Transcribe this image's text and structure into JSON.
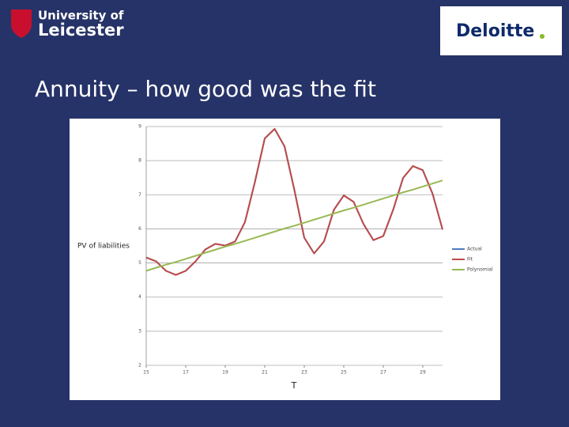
{
  "header": {
    "university_line1": "University of",
    "university_line2": "Leicester",
    "company": "Deloitte",
    "title": "Annuity – how good was the fit"
  },
  "chart_data": {
    "type": "line",
    "y_label": "PV of liabilities",
    "x_label": "T",
    "x": [
      15,
      15.5,
      16,
      16.5,
      17,
      17.5,
      18,
      18.5,
      19,
      19.5,
      20,
      20.5,
      21,
      21.5,
      22,
      22.5,
      23,
      23.5,
      24,
      24.5,
      25,
      25.5,
      26,
      26.5,
      27,
      27.5,
      28,
      28.5,
      29,
      29.5,
      30
    ],
    "series": [
      {
        "name": "Actual",
        "color": "#4a7ebb",
        "values": [
          5.16,
          5.05,
          4.77,
          4.65,
          4.77,
          5.05,
          5.4,
          5.56,
          5.51,
          5.63,
          6.2,
          7.37,
          8.65,
          8.93,
          8.42,
          7.14,
          5.74,
          5.28,
          5.63,
          6.56,
          6.98,
          6.79,
          6.14,
          5.67,
          5.79,
          6.56,
          7.49,
          7.84,
          7.72,
          7.02,
          5.98
        ]
      },
      {
        "name": "Fit",
        "color": "#be4b48",
        "values": [
          5.16,
          5.05,
          4.77,
          4.65,
          4.77,
          5.05,
          5.4,
          5.56,
          5.51,
          5.63,
          6.2,
          7.37,
          8.65,
          8.93,
          8.42,
          7.14,
          5.74,
          5.28,
          5.63,
          6.56,
          6.98,
          6.79,
          6.14,
          5.67,
          5.79,
          6.56,
          7.49,
          7.84,
          7.72,
          7.02,
          5.98
        ]
      },
      {
        "name": "Polynomial",
        "color": "#98b954",
        "values": [
          4.77,
          4.86,
          4.95,
          5.03,
          5.12,
          5.21,
          5.3,
          5.39,
          5.48,
          5.56,
          5.65,
          5.74,
          5.83,
          5.92,
          6.01,
          6.09,
          6.18,
          6.27,
          6.36,
          6.45,
          6.54,
          6.62,
          6.71,
          6.8,
          6.89,
          6.98,
          7.07,
          7.15,
          7.24,
          7.33,
          7.42
        ]
      }
    ],
    "xlim": [
      15,
      30
    ],
    "ylim": [
      2,
      9
    ],
    "xticks": [
      15,
      17,
      19,
      21,
      23,
      25,
      27,
      29
    ],
    "yticks": [
      2,
      3,
      4,
      5,
      6,
      7,
      8,
      9
    ],
    "grid": true,
    "legend": "right"
  }
}
